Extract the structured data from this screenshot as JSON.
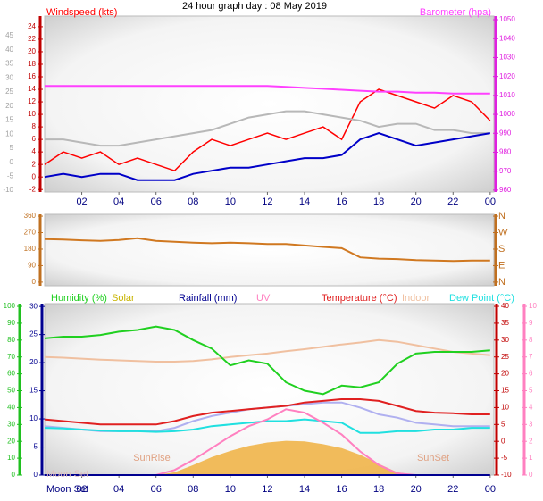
{
  "chart_data": [
    {
      "type": "line",
      "title": "24 hour graph day : 08 May 2019",
      "x": [
        0,
        1,
        2,
        3,
        4,
        5,
        6,
        7,
        8,
        9,
        10,
        11,
        12,
        13,
        14,
        15,
        16,
        17,
        18,
        19,
        20,
        21,
        22,
        23,
        24
      ],
      "xlim": [
        0,
        24.2
      ],
      "xticks": [
        {
          "value": 2,
          "label": "02"
        },
        {
          "value": 4,
          "label": "04"
        },
        {
          "value": 6,
          "label": "06"
        },
        {
          "value": 8,
          "label": "08"
        },
        10,
        12,
        14,
        16,
        18,
        20,
        22,
        {
          "value": 24,
          "label": "00"
        }
      ],
      "ylim": [
        -2.4,
        25.7
      ],
      "yticks": [
        -2,
        0,
        2,
        4,
        6,
        8,
        10,
        12,
        14,
        16,
        18,
        20,
        22,
        24
      ],
      "y2lim": [
        959,
        1051.9
      ],
      "y2ticks": [
        960,
        970,
        980,
        990,
        1000,
        1010,
        1020,
        1030,
        1040,
        1050
      ],
      "y3lim": [
        -10.6,
        52
      ],
      "y3ticks": [
        -10,
        -5,
        0,
        5,
        10,
        15,
        20,
        25,
        30,
        35,
        40,
        45
      ],
      "axis_colors": {
        "y": "#c00000",
        "y2": "#e020e0",
        "y3": "#a0a0a0"
      },
      "series": [
        {
          "name": "Windspeed (kts)",
          "color": "#ff0000",
          "values": [
            2,
            4,
            3,
            4,
            2,
            3,
            2,
            1,
            4,
            6,
            5,
            6,
            7,
            6,
            7,
            8,
            6,
            12,
            14,
            13,
            12,
            11,
            13,
            12,
            9
          ]
        },
        {
          "color": "#b8b8b8",
          "values": [
            6,
            6,
            5.5,
            5,
            5,
            5.5,
            6,
            6.5,
            7,
            7.5,
            8.5,
            9.5,
            10,
            10.5,
            10.5,
            10,
            9.5,
            9,
            8,
            8.5,
            8.5,
            7.5,
            7.5,
            7,
            7
          ]
        },
        {
          "color": "#0000c8",
          "values": [
            0,
            0.5,
            0,
            0.5,
            0.5,
            -0.5,
            -0.5,
            -0.5,
            0.5,
            1,
            1.5,
            1.5,
            2,
            2.5,
            3,
            3,
            3.5,
            6,
            7,
            6,
            5,
            5.5,
            6,
            6.5,
            7
          ]
        },
        {
          "name": "Barometer (hpa)",
          "color": "#ff40ff",
          "axis": "y2",
          "values": [
            1015,
            1015,
            1015,
            1015,
            1015,
            1015,
            1015,
            1015,
            1015,
            1015,
            1015,
            1015,
            1015,
            1014.5,
            1014,
            1013.5,
            1013,
            1012.5,
            1012,
            1012,
            1011.5,
            1011.5,
            1011,
            1011,
            1011
          ]
        }
      ]
    },
    {
      "type": "line",
      "x": [
        0,
        1,
        2,
        3,
        4,
        5,
        6,
        7,
        8,
        9,
        10,
        11,
        12,
        13,
        14,
        15,
        16,
        17,
        18,
        19,
        20,
        21,
        22,
        23,
        24
      ],
      "xlim": [
        0,
        24.2
      ],
      "ylim": [
        -20,
        370
      ],
      "yticks": [
        0,
        90,
        180,
        270,
        360
      ],
      "y2lim": [
        -20,
        370
      ],
      "y2ticks": [
        {
          "value": 360,
          "label": "N"
        },
        {
          "value": 270,
          "label": "W"
        },
        {
          "value": 180,
          "label": "S"
        },
        {
          "value": 90,
          "label": "E"
        },
        {
          "value": 0,
          "label": "N"
        }
      ],
      "axis_colors": {
        "y": "#c07020",
        "y2": "#c07020"
      },
      "series": [
        {
          "color": "#d07820",
          "values": [
            235,
            232,
            228,
            225,
            230,
            240,
            225,
            220,
            215,
            212,
            215,
            212,
            208,
            208,
            200,
            192,
            185,
            135,
            128,
            126,
            120,
            118,
            115,
            118,
            118
          ]
        }
      ]
    },
    {
      "type": "line",
      "x": [
        0,
        1,
        2,
        3,
        4,
        5,
        6,
        7,
        8,
        9,
        10,
        11,
        12,
        13,
        14,
        15,
        16,
        17,
        18,
        19,
        20,
        21,
        22,
        23,
        24
      ],
      "xlim": [
        0,
        24.2
      ],
      "xticks": [
        {
          "value": 2,
          "label": "02"
        },
        {
          "value": 4,
          "label": "04"
        },
        {
          "value": 6,
          "label": "06"
        },
        {
          "value": 8,
          "label": "08"
        },
        10,
        12,
        14,
        16,
        18,
        20,
        22,
        {
          "value": 24,
          "label": "00"
        }
      ],
      "ylim": [
        0,
        30.5
      ],
      "yticks": [
        0,
        5,
        10,
        15,
        20,
        25,
        30
      ],
      "y2lim": [
        -10,
        40.8
      ],
      "y2ticks": [
        -10,
        -5,
        0,
        5,
        10,
        15,
        20,
        25,
        30,
        35,
        40
      ],
      "y3lim": [
        0,
        101.6
      ],
      "y3ticks": [
        0,
        10,
        20,
        30,
        40,
        50,
        60,
        70,
        80,
        90,
        100
      ],
      "y4lim": [
        0,
        10.16
      ],
      "y4ticks": [
        0,
        1,
        2,
        3,
        4,
        5,
        6,
        7,
        8,
        9,
        10
      ],
      "axis_colors": {
        "y": "#000090",
        "y2": "#c00000",
        "y3": "#20c020",
        "y4": "#ff80c0"
      },
      "annotations": [
        "SunRise",
        "SunSet",
        "Moon Set",
        "Moon Set"
      ],
      "series": [
        {
          "name": "Solar",
          "color": "#f0b040",
          "area": true,
          "values": [
            0,
            0,
            0,
            0,
            0,
            0,
            0,
            0.5,
            1.8,
            3.2,
            4.3,
            5.2,
            5.8,
            6.1,
            6,
            5.5,
            4.8,
            3.6,
            2,
            0.5,
            0,
            0,
            0,
            0,
            0
          ]
        },
        {
          "name": "Indoor",
          "color": "#f0c0a0",
          "axis": "y2",
          "values": [
            25,
            24.8,
            24.5,
            24.2,
            24,
            23.8,
            23.6,
            23.6,
            23.8,
            24.3,
            25,
            25.5,
            26,
            26.7,
            27.3,
            28,
            28.7,
            29.3,
            30,
            29.5,
            28.5,
            27.5,
            26.5,
            26,
            25.5
          ]
        },
        {
          "color": "#b0b0f0",
          "axis": "y2",
          "values": [
            4.5,
            4,
            3.5,
            3,
            3,
            3,
            3,
            4,
            6,
            7.5,
            8.5,
            9.5,
            10,
            10.5,
            11,
            11.5,
            11.5,
            10,
            8,
            7,
            5.5,
            5,
            4.5,
            4.5,
            4.5
          ]
        },
        {
          "name": "Temperature (°C)",
          "color": "#e02020",
          "axis": "y2",
          "values": [
            6.5,
            6,
            5.5,
            5,
            5,
            5,
            5,
            6,
            7.5,
            8.5,
            9,
            9.5,
            10,
            10.5,
            11.5,
            12,
            12.5,
            12.5,
            12,
            10.5,
            9,
            8.5,
            8.3,
            8,
            8
          ]
        },
        {
          "name": "Dew Point (°C)",
          "color": "#20e0e0",
          "axis": "y2",
          "values": [
            4,
            3.8,
            3.5,
            3.2,
            3,
            3,
            2.8,
            3,
            3.5,
            4.5,
            5,
            5.5,
            6,
            6,
            6.5,
            6,
            5.5,
            2.5,
            2.5,
            3,
            3,
            3.5,
            3.5,
            4,
            4
          ]
        },
        {
          "name": "UV",
          "color": "#ff80c0",
          "axis": "y4",
          "values": [
            0,
            0,
            0,
            0,
            0,
            0,
            0,
            0.3,
            0.9,
            1.6,
            2.3,
            2.9,
            3.3,
            3.9,
            3.7,
            3.1,
            2.4,
            1.4,
            0.6,
            0.1,
            0,
            0,
            0,
            0,
            0
          ]
        },
        {
          "name": "Humidity (%)",
          "color": "#20d020",
          "axis": "y3",
          "values": [
            81,
            82,
            82,
            83,
            85,
            86,
            88,
            86,
            80,
            75,
            65,
            68,
            66,
            55,
            50,
            48,
            53,
            52,
            55,
            66,
            72,
            73,
            73,
            73,
            74
          ]
        },
        {
          "name": "Rainfall (mm)",
          "color": "#000090",
          "values": [
            0,
            0,
            0,
            0,
            0,
            0,
            0,
            0,
            0,
            0,
            0,
            0,
            0,
            0,
            0,
            0,
            0,
            0,
            0,
            0,
            0,
            0,
            0,
            0,
            0
          ]
        }
      ]
    }
  ]
}
